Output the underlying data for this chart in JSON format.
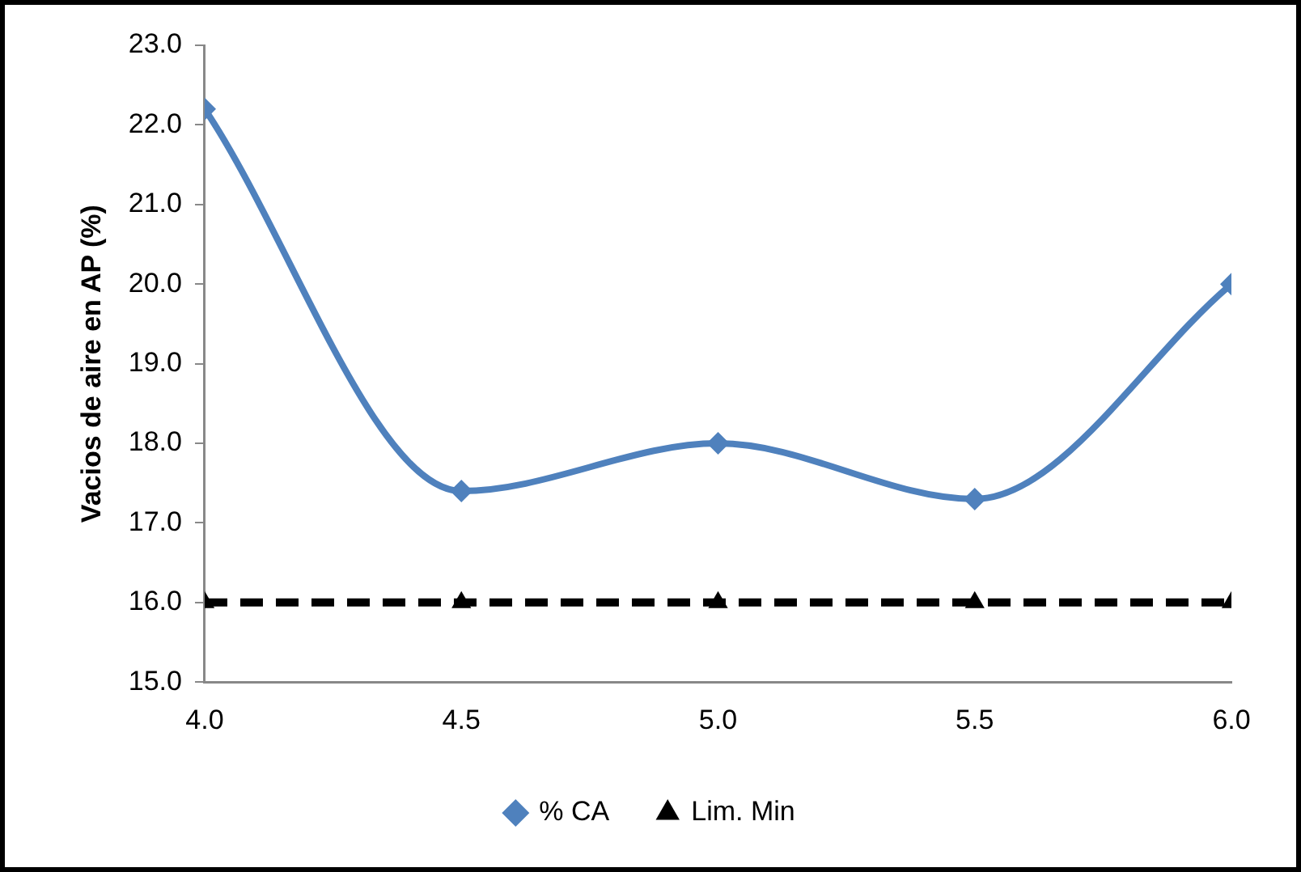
{
  "chart_data": {
    "type": "line",
    "ylabel": "Vacios de aire en AP (%)",
    "x": [
      4.0,
      4.5,
      5.0,
      5.5,
      6.0
    ],
    "xlim": [
      4,
      6
    ],
    "xticks": [
      {
        "value": 4,
        "label": "4.0"
      },
      {
        "value": 4.5,
        "label": "4.5"
      },
      {
        "value": 5,
        "label": "5.0"
      },
      {
        "value": 5.5,
        "label": "5.5"
      },
      {
        "value": 6,
        "label": "6.0"
      }
    ],
    "ylim": [
      15,
      23
    ],
    "yticks": [
      {
        "value": 15,
        "label": "15.0"
      },
      {
        "value": 16,
        "label": "16.0"
      },
      {
        "value": 17,
        "label": "17.0"
      },
      {
        "value": 18,
        "label": "18.0"
      },
      {
        "value": 19,
        "label": "19.0"
      },
      {
        "value": 20,
        "label": "20.0"
      },
      {
        "value": 21,
        "label": "21.0"
      },
      {
        "value": 22,
        "label": "22.0"
      },
      {
        "value": 23,
        "label": "23.0"
      }
    ],
    "grid": false,
    "legend": "bottom",
    "series": [
      {
        "name": "% CA",
        "color": "#4f81bd",
        "values": [
          22.2,
          17.4,
          18.0,
          17.3,
          20.0
        ],
        "marker": "diamond",
        "line_style": "solid"
      },
      {
        "name": "Lim. Min",
        "color": "#000000",
        "values": [
          16.0,
          16.0,
          16.0,
          16.0,
          16.0
        ],
        "marker": "triangle",
        "line_style": "dashed"
      }
    ]
  }
}
